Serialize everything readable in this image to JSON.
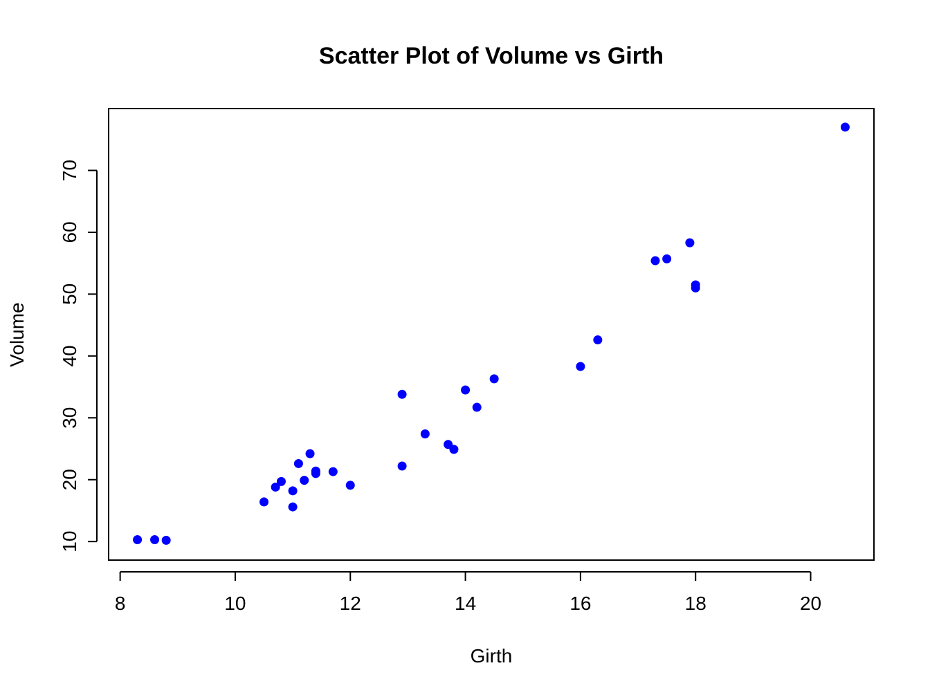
{
  "chart_data": {
    "type": "scatter",
    "title": "Scatter Plot of Volume vs Girth",
    "xlabel": "Girth",
    "ylabel": "Volume",
    "xlim": [
      7.8,
      21.1
    ],
    "ylim": [
      7.0,
      80.0
    ],
    "x_ticks": [
      8,
      10,
      12,
      14,
      16,
      18,
      20
    ],
    "y_ticks": [
      10,
      20,
      30,
      40,
      50,
      60,
      70
    ],
    "grid": false,
    "point_color": "#0000ff",
    "series": [
      {
        "x": [
          8.3,
          8.6,
          8.8,
          10.5,
          10.7,
          10.8,
          11.0,
          11.0,
          11.1,
          11.2,
          11.3,
          11.4,
          11.4,
          11.7,
          12.0,
          12.9,
          12.9,
          13.3,
          13.7,
          13.8,
          14.0,
          14.2,
          14.5,
          16.0,
          16.3,
          17.3,
          17.5,
          17.9,
          18.0,
          18.0,
          20.6
        ],
        "y": [
          10.3,
          10.3,
          10.2,
          16.4,
          18.8,
          19.7,
          15.6,
          18.2,
          22.6,
          19.9,
          24.2,
          21.0,
          21.4,
          21.3,
          19.1,
          22.2,
          33.8,
          27.4,
          25.7,
          24.9,
          34.5,
          31.7,
          36.3,
          38.3,
          42.6,
          55.4,
          55.7,
          58.3,
          51.5,
          51.0,
          77.0
        ]
      }
    ]
  }
}
